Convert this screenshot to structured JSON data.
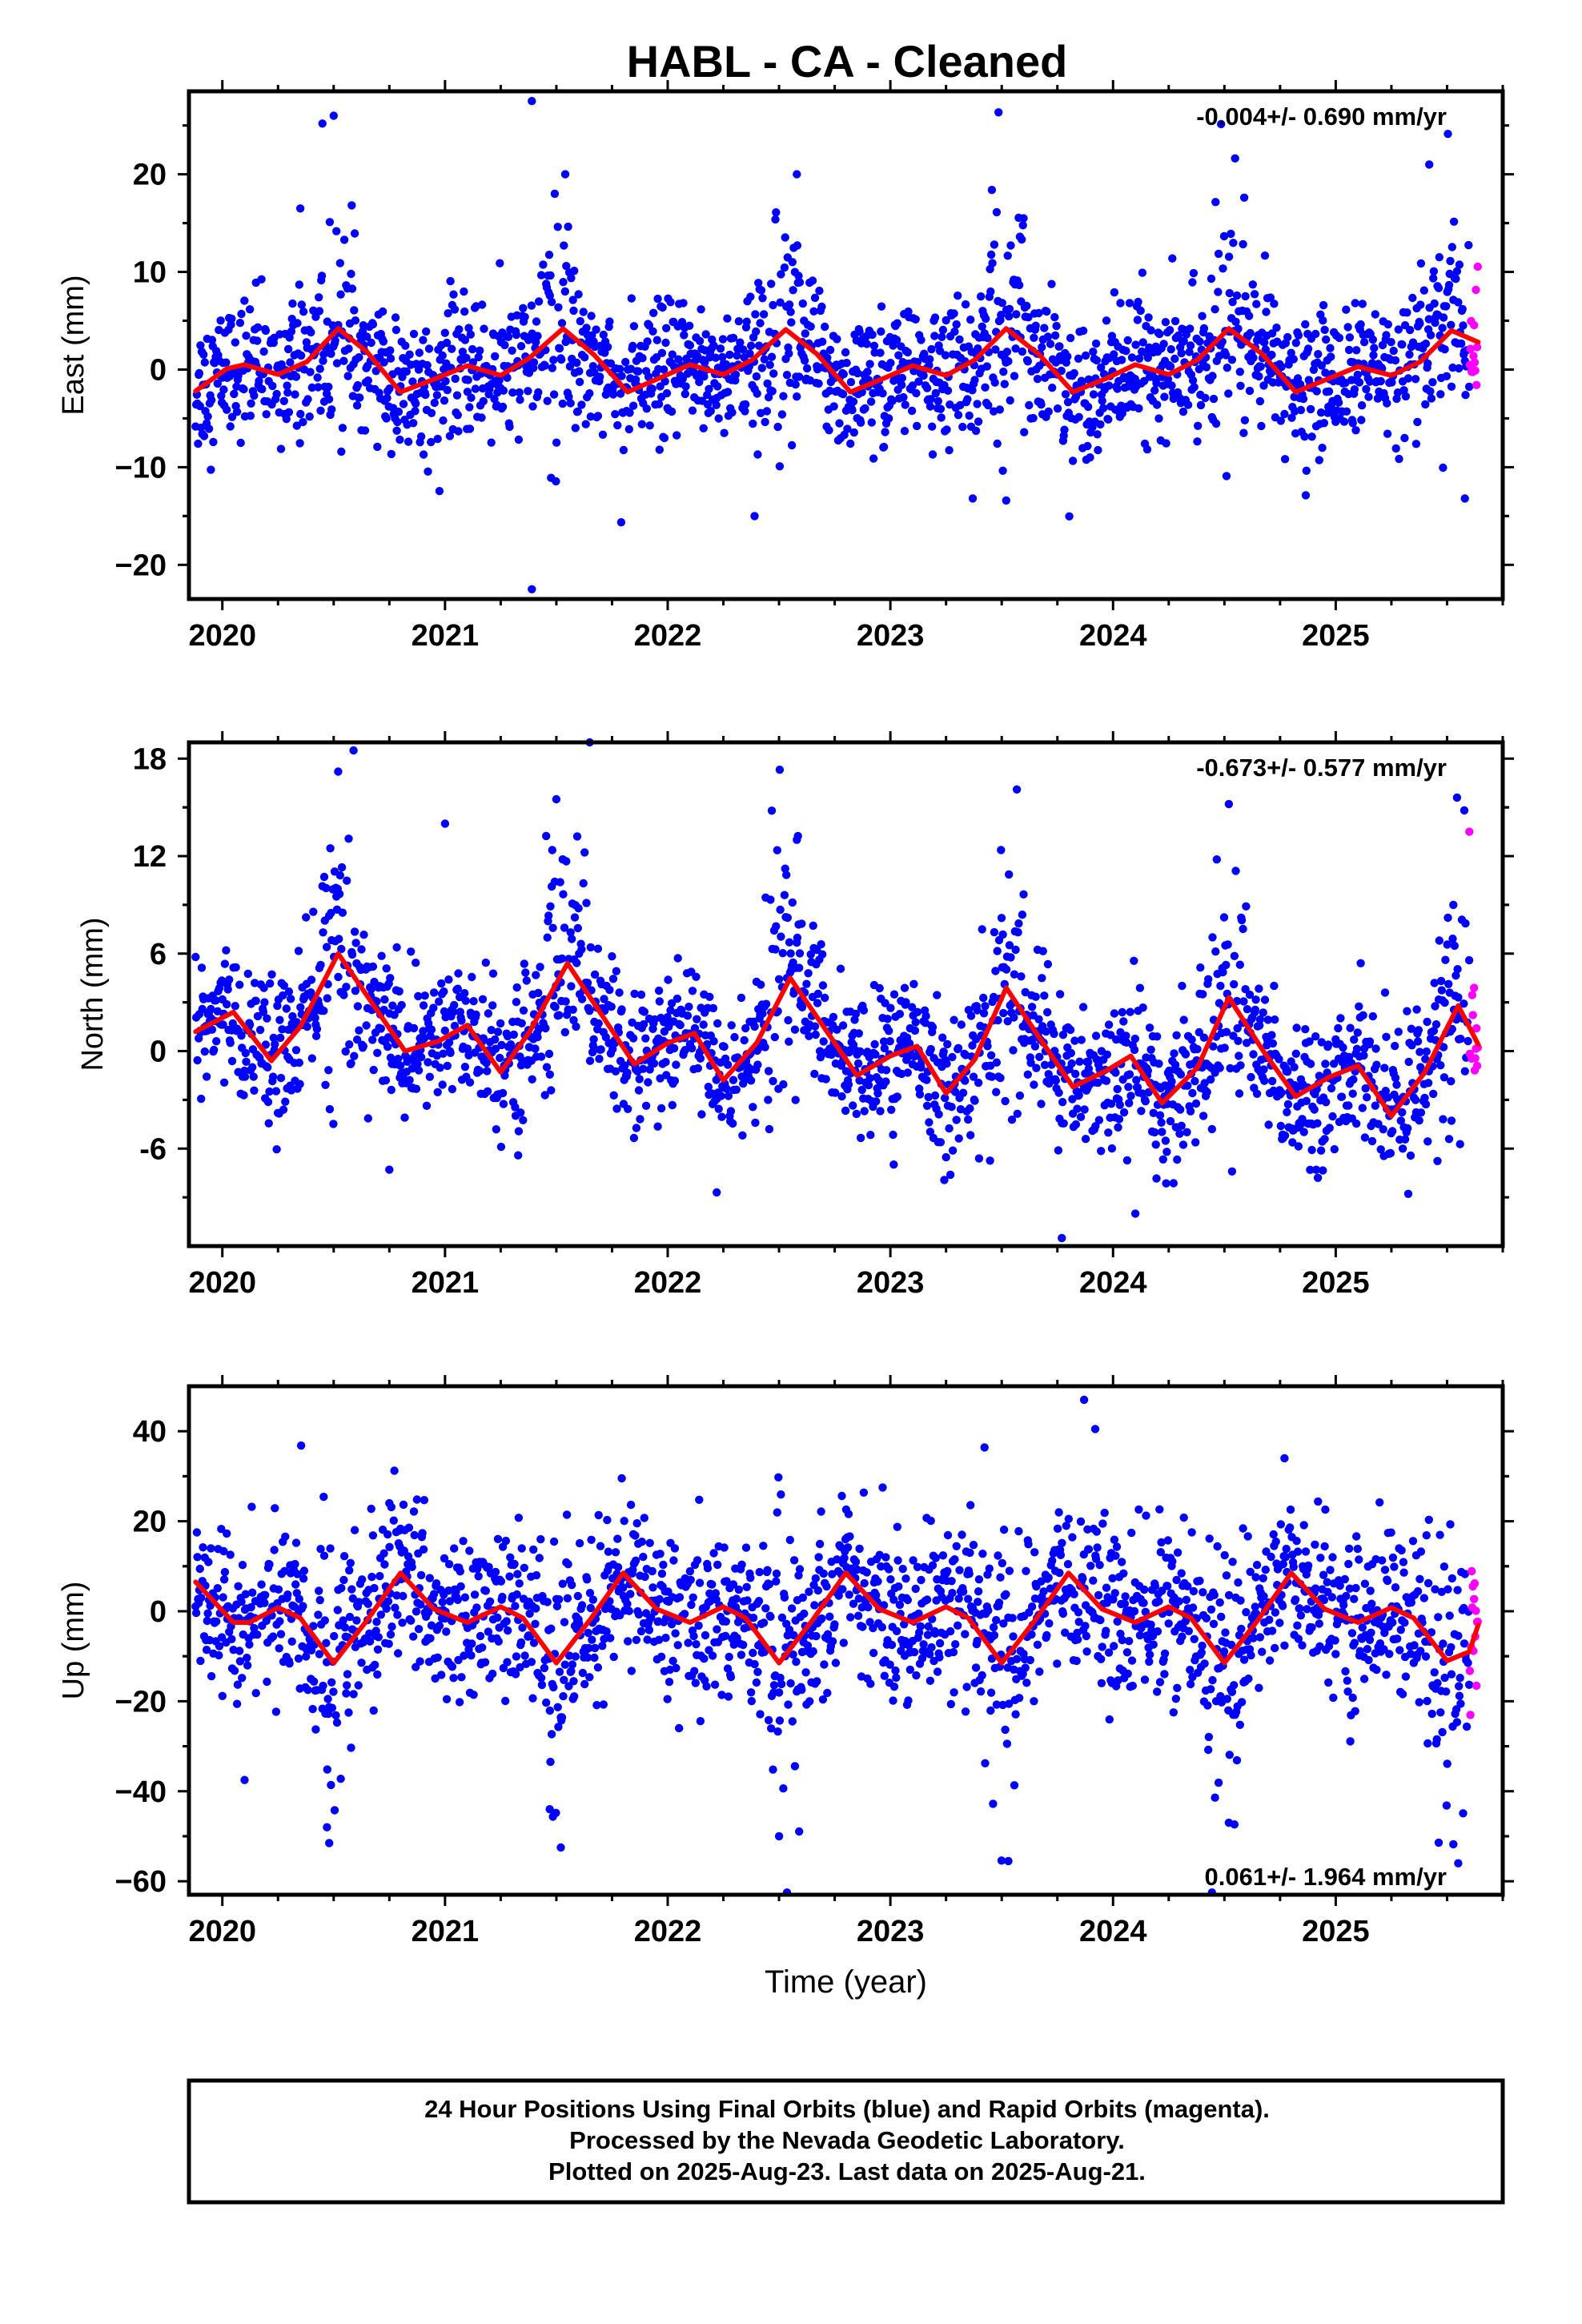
{
  "title": "HABL  - CA - Cleaned",
  "footer": {
    "lines": [
      "24 Hour Positions Using Final Orbits (blue) and Rapid Orbits (magenta).",
      "Processed by the Nevada Geodetic Laboratory.",
      "Plotted on 2025-Aug-23. Last data on 2025-Aug-21."
    ]
  },
  "colors": {
    "final": "#0000ff",
    "rapid": "#ff00ff",
    "fit": "#ff0000",
    "frame": "#000000"
  },
  "chart_data": [
    {
      "type": "scatter",
      "component": "East",
      "ylabel": "East (mm)",
      "xlabel": "",
      "rate_label": "-0.004+/- 0.690 mm/yr",
      "rate_position": "top-right",
      "xlim": [
        2019.85,
        2025.75
      ],
      "ylim": [
        -23.5,
        28.5
      ],
      "xticks": [
        2020,
        2021,
        2022,
        2023,
        2024,
        2025
      ],
      "xtick_labels": [
        "2020",
        "2021",
        "2022",
        "2023",
        "2024",
        "2025"
      ],
      "yticks": [
        -20,
        -10,
        0,
        10,
        20
      ],
      "ytick_labels": [
        "−20",
        "−10",
        "0",
        "10",
        "20"
      ],
      "data_start": 2019.88,
      "rapid_start": 2025.6,
      "data_end": 2025.64,
      "noise_sd": 3.5,
      "offset": 0.0,
      "seasonal": {
        "a1": 0.9,
        "p1": 1.57,
        "a2": 2.4,
        "p2": -1.57
      },
      "seasonal_peak": {
        "peak_at": 2020.52,
        "amplitude": 6.5
      },
      "outliers": [
        [
          2020.5,
          26.0
        ],
        [
          2021.39,
          27.5
        ],
        [
          2021.39,
          -22.5
        ],
        [
          2022.39,
          -15.0
        ],
        [
          2022.58,
          20.0
        ],
        [
          2023.37,
          -13.2
        ],
        [
          2023.52,
          -13.4
        ],
        [
          2025.42,
          21.0
        ],
        [
          2025.58,
          -13.2
        ],
        [
          2020.35,
          16.5
        ],
        [
          2021.54,
          20.0
        ]
      ],
      "fit": [
        [
          2019.88,
          -2.2
        ],
        [
          2020.02,
          0.1
        ],
        [
          2020.1,
          0.5
        ],
        [
          2020.25,
          -0.5
        ],
        [
          2020.38,
          0.8
        ],
        [
          2020.52,
          4.2
        ],
        [
          2020.65,
          1.8
        ],
        [
          2020.8,
          -2.3
        ],
        [
          2020.95,
          -1.0
        ],
        [
          2021.1,
          0.4
        ],
        [
          2021.25,
          -0.6
        ],
        [
          2021.38,
          1.2
        ],
        [
          2021.53,
          4.2
        ],
        [
          2021.67,
          1.5
        ],
        [
          2021.82,
          -2.3
        ],
        [
          2021.97,
          -0.8
        ],
        [
          2022.1,
          0.5
        ],
        [
          2022.25,
          -0.5
        ],
        [
          2022.38,
          1.0
        ],
        [
          2022.53,
          4.1
        ],
        [
          2022.67,
          1.6
        ],
        [
          2022.82,
          -2.3
        ],
        [
          2022.97,
          -0.9
        ],
        [
          2023.1,
          0.4
        ],
        [
          2023.25,
          -0.6
        ],
        [
          2023.38,
          1.0
        ],
        [
          2023.52,
          4.2
        ],
        [
          2023.67,
          1.5
        ],
        [
          2023.82,
          -2.3
        ],
        [
          2023.97,
          -0.9
        ],
        [
          2024.1,
          0.5
        ],
        [
          2024.25,
          -0.5
        ],
        [
          2024.38,
          1.0
        ],
        [
          2024.52,
          4.2
        ],
        [
          2024.67,
          1.6
        ],
        [
          2024.82,
          -2.3
        ],
        [
          2024.97,
          -0.9
        ],
        [
          2025.1,
          0.3
        ],
        [
          2025.25,
          -0.6
        ],
        [
          2025.38,
          0.8
        ],
        [
          2025.52,
          4.0
        ],
        [
          2025.64,
          2.8
        ]
      ]
    },
    {
      "type": "scatter",
      "component": "North",
      "ylabel": "North (mm)",
      "xlabel": "",
      "rate_label": "-0.673+/- 0.577 mm/yr",
      "rate_position": "top-right",
      "xlim": [
        2019.85,
        2025.75
      ],
      "ylim": [
        -12,
        19
      ],
      "xticks": [
        2020,
        2021,
        2022,
        2023,
        2024,
        2025
      ],
      "xtick_labels": [
        "2020",
        "2021",
        "2022",
        "2023",
        "2024",
        "2025"
      ],
      "yticks": [
        -6,
        0,
        6,
        12,
        18
      ],
      "ytick_labels": [
        "-6",
        "0",
        "6",
        "12",
        "18"
      ],
      "data_start": 2019.88,
      "rapid_start": 2025.6,
      "data_end": 2025.64,
      "noise_sd": 2.2,
      "offset": 2.0,
      "seasonal": {
        "a1": 1.2,
        "p1": 1.57,
        "a2": 3.2,
        "p2": -1.57
      },
      "seasonal_peak": {
        "peak_at": 2020.52,
        "amplitude": 6.0
      },
      "outliers": [
        [
          2020.52,
          17.2
        ],
        [
          2021.65,
          19.0
        ],
        [
          2021.5,
          15.5
        ],
        [
          2022.58,
          13.0
        ],
        [
          2023.77,
          -11.5
        ],
        [
          2024.1,
          -10.0
        ],
        [
          2024.52,
          15.2
        ],
        [
          2020.75,
          -7.3
        ],
        [
          2025.6,
          13.5
        ],
        [
          2024.92,
          -7.8
        ],
        [
          2021.0,
          14.0
        ],
        [
          2022.22,
          -8.7
        ]
      ],
      "fit": [
        [
          2019.88,
          1.2
        ],
        [
          2020.05,
          2.4
        ],
        [
          2020.22,
          -0.6
        ],
        [
          2020.35,
          1.5
        ],
        [
          2020.52,
          6.0
        ],
        [
          2020.67,
          3.0
        ],
        [
          2020.82,
          0.0
        ],
        [
          2020.97,
          0.6
        ],
        [
          2021.1,
          1.6
        ],
        [
          2021.25,
          -1.3
        ],
        [
          2021.38,
          1.2
        ],
        [
          2021.55,
          5.4
        ],
        [
          2021.7,
          2.3
        ],
        [
          2021.85,
          -0.8
        ],
        [
          2022.0,
          0.5
        ],
        [
          2022.12,
          1.1
        ],
        [
          2022.25,
          -1.8
        ],
        [
          2022.4,
          0.5
        ],
        [
          2022.55,
          4.5
        ],
        [
          2022.7,
          1.5
        ],
        [
          2022.85,
          -1.5
        ],
        [
          2023.0,
          -0.3
        ],
        [
          2023.12,
          0.3
        ],
        [
          2023.25,
          -2.6
        ],
        [
          2023.38,
          -0.5
        ],
        [
          2023.52,
          3.9
        ],
        [
          2023.67,
          0.8
        ],
        [
          2023.82,
          -2.2
        ],
        [
          2023.97,
          -1.2
        ],
        [
          2024.08,
          -0.3
        ],
        [
          2024.22,
          -3.2
        ],
        [
          2024.38,
          -1.0
        ],
        [
          2024.52,
          3.3
        ],
        [
          2024.67,
          0.1
        ],
        [
          2024.82,
          -2.8
        ],
        [
          2024.97,
          -1.6
        ],
        [
          2025.1,
          -0.9
        ],
        [
          2025.25,
          -4.0
        ],
        [
          2025.4,
          -1.3
        ],
        [
          2025.55,
          2.8
        ],
        [
          2025.64,
          0.4
        ]
      ]
    },
    {
      "type": "scatter",
      "component": "Up",
      "ylabel": "Up (mm)",
      "xlabel": "Time (year)",
      "rate_label": "0.061+/- 1.964 mm/yr",
      "rate_position": "bottom-right",
      "xlim": [
        2019.85,
        2025.75
      ],
      "ylim": [
        -63,
        50
      ],
      "xticks": [
        2020,
        2021,
        2022,
        2023,
        2024,
        2025
      ],
      "xtick_labels": [
        "2020",
        "2021",
        "2022",
        "2023",
        "2024",
        "2025"
      ],
      "yticks": [
        -60,
        -40,
        -20,
        0,
        20,
        40
      ],
      "ytick_labels": [
        "−60",
        "−40",
        "−20",
        "0",
        "20",
        "40"
      ],
      "data_start": 2019.88,
      "rapid_start": 2025.6,
      "data_end": 2025.64,
      "noise_sd": 9.0,
      "offset": 0.0,
      "seasonal": {
        "a1": 2.5,
        "p1": -1.57,
        "a2": 8.5,
        "p2": 1.57
      },
      "seasonal_peak": {
        "peak_at": 2020.5,
        "amplitude": -12.0
      },
      "outliers": [
        [
          2023.87,
          47.0
        ],
        [
          2023.92,
          40.5
        ],
        [
          2020.47,
          -48.0
        ],
        [
          2020.48,
          -51.5
        ],
        [
          2021.52,
          -52.5
        ],
        [
          2022.5,
          -50.0
        ],
        [
          2023.53,
          -55.5
        ],
        [
          2024.77,
          34.0
        ],
        [
          2024.52,
          -47.0
        ],
        [
          2025.55,
          -56.0
        ],
        [
          2020.1,
          -37.5
        ],
        [
          2021.47,
          -44.0
        ],
        [
          2020.75,
          24.0
        ]
      ],
      "fit": [
        [
          2019.88,
          6.5
        ],
        [
          2020.05,
          -2.5
        ],
        [
          2020.12,
          -2.5
        ],
        [
          2020.25,
          0.8
        ],
        [
          2020.35,
          -1.5
        ],
        [
          2020.5,
          -11.5
        ],
        [
          2020.65,
          -2.0
        ],
        [
          2020.8,
          8.5
        ],
        [
          2020.95,
          0.5
        ],
        [
          2021.1,
          -2.5
        ],
        [
          2021.25,
          1.0
        ],
        [
          2021.35,
          -1.5
        ],
        [
          2021.5,
          -11.5
        ],
        [
          2021.65,
          -2.0
        ],
        [
          2021.8,
          8.5
        ],
        [
          2021.95,
          0.5
        ],
        [
          2022.1,
          -2.5
        ],
        [
          2022.25,
          1.0
        ],
        [
          2022.35,
          -1.5
        ],
        [
          2022.5,
          -11.5
        ],
        [
          2022.65,
          -2.0
        ],
        [
          2022.8,
          8.5
        ],
        [
          2022.95,
          0.5
        ],
        [
          2023.1,
          -2.5
        ],
        [
          2023.25,
          1.0
        ],
        [
          2023.35,
          -1.5
        ],
        [
          2023.5,
          -11.5
        ],
        [
          2023.65,
          -2.0
        ],
        [
          2023.8,
          8.5
        ],
        [
          2023.95,
          0.5
        ],
        [
          2024.1,
          -2.5
        ],
        [
          2024.25,
          1.0
        ],
        [
          2024.35,
          -1.5
        ],
        [
          2024.5,
          -11.5
        ],
        [
          2024.65,
          -2.0
        ],
        [
          2024.8,
          8.5
        ],
        [
          2024.95,
          0.5
        ],
        [
          2025.1,
          -2.5
        ],
        [
          2025.25,
          0.8
        ],
        [
          2025.35,
          -1.5
        ],
        [
          2025.5,
          -11.0
        ],
        [
          2025.6,
          -9.0
        ],
        [
          2025.64,
          -3.0
        ]
      ]
    }
  ]
}
